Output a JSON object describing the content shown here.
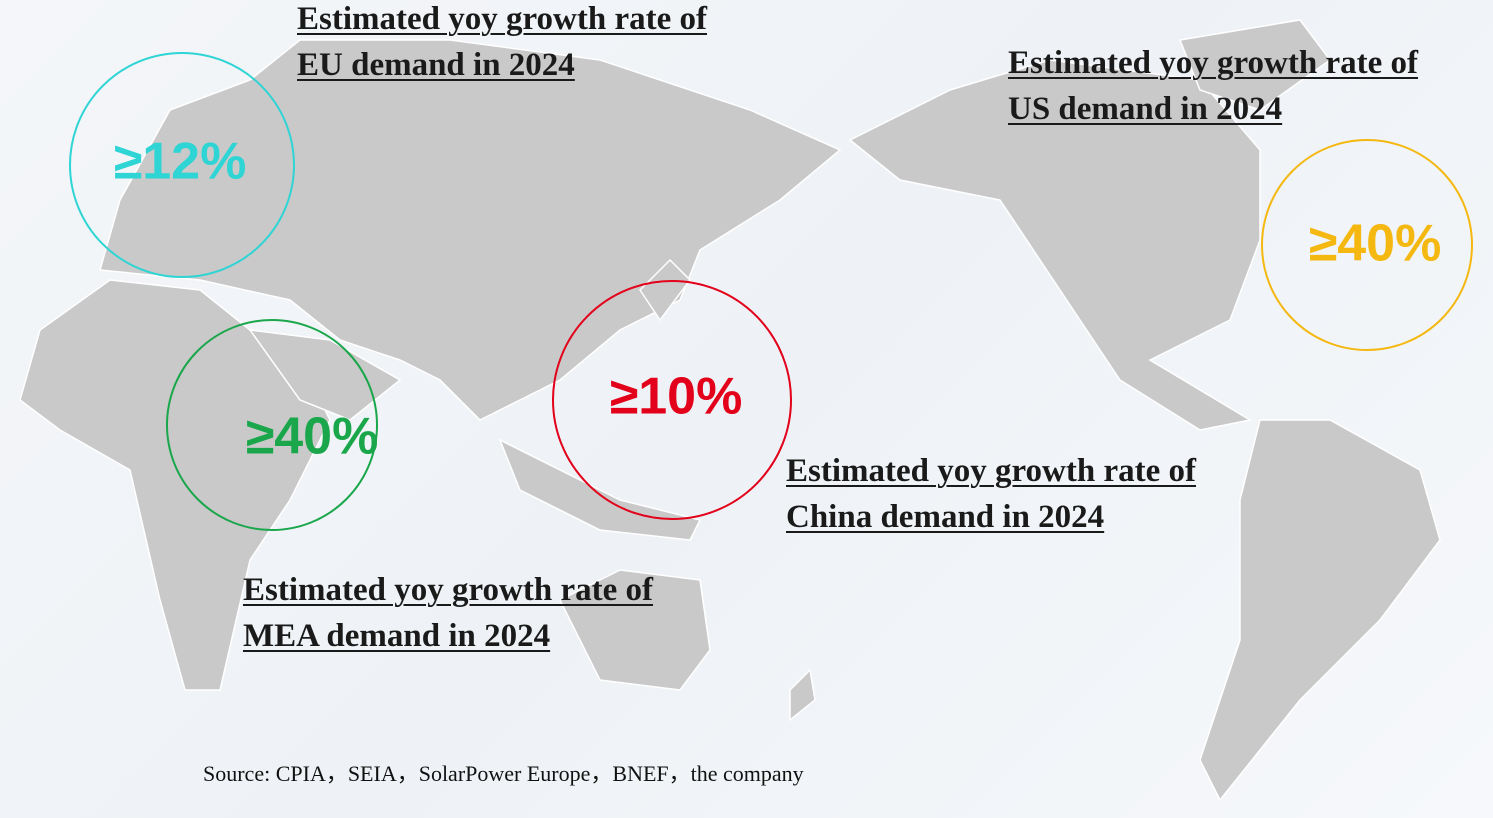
{
  "regions": [
    {
      "lines": [
        "Estimated yoy growth rate of",
        "EU demand in 2024"
      ],
      "value": "≥12%",
      "color": "#2fd4d4"
    },
    {
      "lines": [
        "Estimated yoy growth rate of",
        "US demand in 2024"
      ],
      "value": "≥40%",
      "color": "#f4b811"
    },
    {
      "lines": [
        "Estimated yoy growth rate of",
        "China demand in 2024"
      ],
      "value": "≥10%",
      "color": "#e2001a"
    },
    {
      "lines": [
        "Estimated yoy growth rate of",
        "MEA demand in 2024"
      ],
      "value": "≥40%",
      "color": "#1aa64a"
    }
  ],
  "source": "Source: CPIA，SEIA，SolarPower Europe，BNEF，the company"
}
